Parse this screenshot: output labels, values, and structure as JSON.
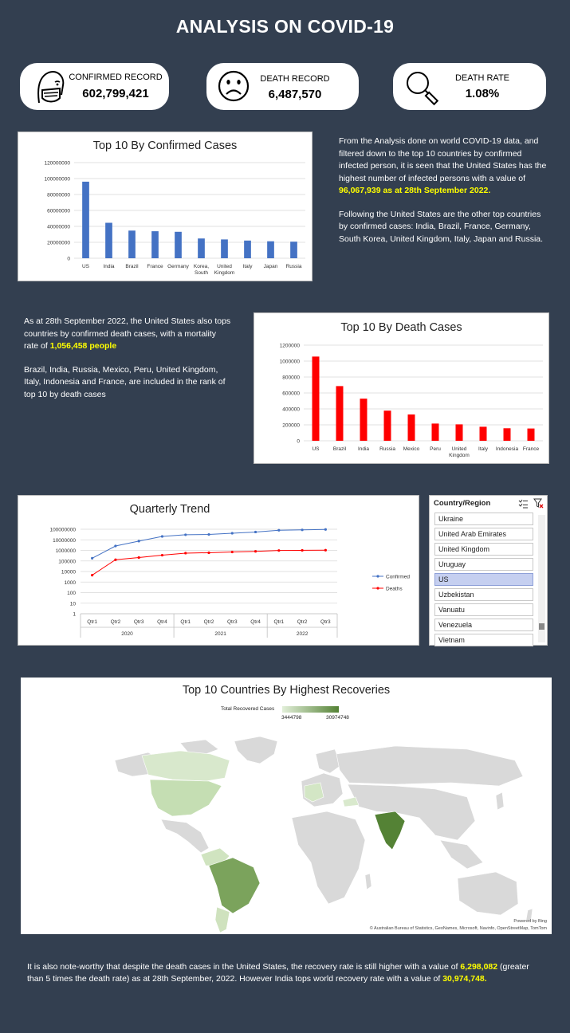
{
  "page": {
    "title": "ANALYSIS ON COVID-19"
  },
  "kpis": [
    {
      "label": "CONFIRMED RECORD",
      "value": "602,799,421",
      "icon": "mask-face-icon"
    },
    {
      "label": "DEATH RECORD",
      "value": "6,487,570",
      "icon": "sad-face-icon"
    },
    {
      "label": "DEATH RATE",
      "value": "1.08%",
      "icon": "magnifier-icon"
    }
  ],
  "confirmed_text": {
    "p1_a": "From the Analysis done on world COVID-19 data, and filtered down to the top 10 countries by confirmed infected person, it is seen that the United States has the highest number of infected persons with a value of ",
    "p1_hl": "96,067,939 as at 28th September 2022",
    "p1_b": ".",
    "p2": "Following the United States are the other top countries by confirmed cases: India, Brazil, France, Germany, South Korea, United Kingdom, Italy, Japan and Russia."
  },
  "death_text": {
    "p1_a": "As at 28th September 2022, the United States also tops countries by confirmed death cases, with a mortality rate of ",
    "p1_hl": "1,056,458 people",
    "p2": "Brazil, India, Russia, Mexico, Peru, United Kingdom, Italy, Indonesia and France, are included in the rank of top 10 by death cases"
  },
  "chart_data": [
    {
      "type": "bar",
      "title": "Top 10 By Confirmed Cases",
      "categories": [
        "US",
        "India",
        "Brazil",
        "France",
        "Germany",
        "Korea, South",
        "United Kingdom",
        "Italy",
        "Japan",
        "Russia"
      ],
      "values": [
        96067939,
        44500000,
        34700000,
        33900000,
        33200000,
        24800000,
        23600000,
        22200000,
        21300000,
        20800000
      ],
      "ylim": [
        0,
        120000000
      ],
      "yticks": [
        "0",
        "20000000",
        "40000000",
        "60000000",
        "80000000",
        "100000000",
        "120000000"
      ],
      "color": "#4472c4",
      "grid": true
    },
    {
      "type": "bar",
      "title": "Top 10 By Death Cases",
      "categories": [
        "US",
        "Brazil",
        "India",
        "Russia",
        "Mexico",
        "Peru",
        "United Kingdom",
        "Italy",
        "Indonesia",
        "France"
      ],
      "values": [
        1056458,
        686000,
        528500,
        378000,
        330000,
        216000,
        206000,
        176000,
        157000,
        154000
      ],
      "ylim": [
        0,
        1200000
      ],
      "yticks": [
        "0",
        "200000",
        "400000",
        "600000",
        "800000",
        "1000000",
        "1200000"
      ],
      "color": "#ff0000",
      "grid": true
    },
    {
      "type": "line",
      "title": "Quarterly Trend",
      "categories": [
        "Qtr1",
        "Qtr2",
        "Qtr3",
        "Qtr4",
        "Qtr1",
        "Qtr2",
        "Qtr3",
        "Qtr4",
        "Qtr1",
        "Qtr2",
        "Qtr3"
      ],
      "year_groups": [
        {
          "label": "2020",
          "count": 4
        },
        {
          "label": "2021",
          "count": 4
        },
        {
          "label": "2022",
          "count": 3
        }
      ],
      "yscale": "log",
      "yticks": [
        "1",
        "10",
        "100",
        "1000",
        "10000",
        "100000",
        "1000000",
        "10000000",
        "100000000"
      ],
      "legend_position": "right",
      "series": [
        {
          "name": "Confirmed",
          "color": "#4472c4",
          "values": [
            180000,
            2600000,
            7500000,
            21000000,
            30000000,
            32000000,
            42000000,
            55000000,
            80000000,
            87000000,
            96000000
          ]
        },
        {
          "name": "Deaths",
          "color": "#ff0000",
          "values": [
            4500,
            130000,
            210000,
            350000,
            550000,
            600000,
            700000,
            800000,
            970000,
            1010000,
            1050000
          ]
        }
      ]
    }
  ],
  "slicer": {
    "header": "Country/Region",
    "items": [
      "Ukraine",
      "United Arab Emirates",
      "United Kingdom",
      "Uruguay",
      "US",
      "Uzbekistan",
      "Vanuatu",
      "Venezuela",
      "Vietnam"
    ],
    "selected": "US"
  },
  "map": {
    "title": "Top 10 Countries By Highest Recoveries",
    "legend_title": "Total Recovered Cases",
    "legend_min": "3444798",
    "legend_max": "30974748",
    "powered": "Powered by Bing",
    "credits": "© Australian Bureau of Statistics, GeoNames, Microsoft, Navinfo, OpenStreetMap, TomTom"
  },
  "footer": {
    "a": "It is also note-worthy that despite the death cases in the United States, the recovery rate is still higher with a value of ",
    "hl1": "6,298,082",
    "b": " (greater than 5 times the death rate) as at 28th September, 2022. However India tops world recovery rate with a value of ",
    "hl2": "30,974,748",
    "c": "."
  }
}
